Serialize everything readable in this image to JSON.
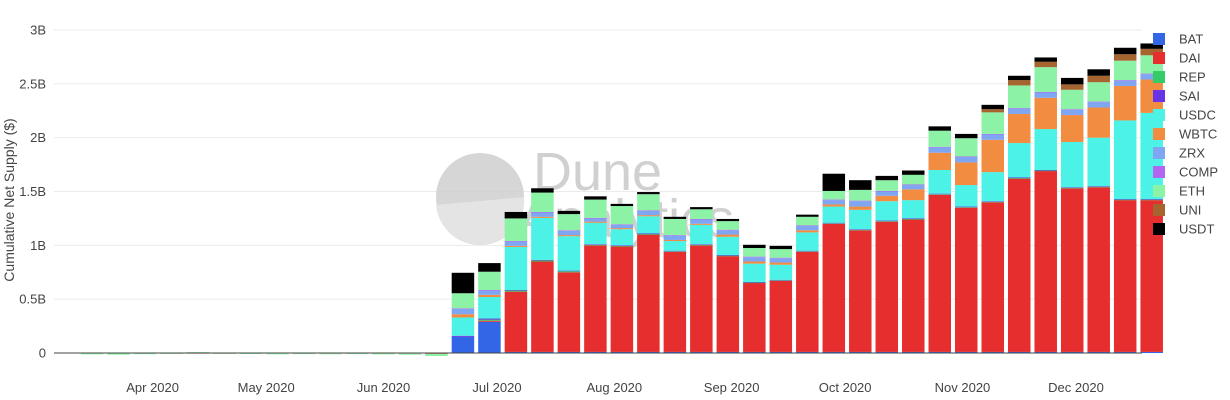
{
  "chart_data": {
    "type": "bar",
    "stacked": true,
    "title": "",
    "ylabel": "Cumulative Net Supply ($)",
    "xlabel": "",
    "ylim": [
      0,
      3000000000
    ],
    "yticks": [
      {
        "value": 0,
        "label": "0"
      },
      {
        "value": 500000000,
        "label": "0.5B"
      },
      {
        "value": 1000000000,
        "label": "1B"
      },
      {
        "value": 1500000000,
        "label": "1.5B"
      },
      {
        "value": 2000000000,
        "label": "2B"
      },
      {
        "value": 2500000000,
        "label": "2.5B"
      },
      {
        "value": 3000000000,
        "label": "3B"
      }
    ],
    "xticks": [
      {
        "date": "2020-04-01",
        "label": "Apr 2020"
      },
      {
        "date": "2020-05-01",
        "label": "May 2020"
      },
      {
        "date": "2020-06-01",
        "label": "Jun 2020"
      },
      {
        "date": "2020-07-01",
        "label": "Jul 2020"
      },
      {
        "date": "2020-08-01",
        "label": "Aug 2020"
      },
      {
        "date": "2020-09-01",
        "label": "Sep 2020"
      },
      {
        "date": "2020-10-01",
        "label": "Oct 2020"
      },
      {
        "date": "2020-11-01",
        "label": "Nov 2020"
      },
      {
        "date": "2020-12-01",
        "label": "Dec 2020"
      }
    ],
    "legend_position": "right",
    "grid": true,
    "x": [
      "2020-03-16",
      "2020-03-23",
      "2020-03-30",
      "2020-04-06",
      "2020-04-13",
      "2020-04-20",
      "2020-04-27",
      "2020-05-04",
      "2020-05-11",
      "2020-05-18",
      "2020-05-25",
      "2020-06-01",
      "2020-06-08",
      "2020-06-15",
      "2020-06-22",
      "2020-06-29",
      "2020-07-06",
      "2020-07-13",
      "2020-07-20",
      "2020-07-27",
      "2020-08-03",
      "2020-08-10",
      "2020-08-17",
      "2020-08-24",
      "2020-08-31",
      "2020-09-07",
      "2020-09-14",
      "2020-09-21",
      "2020-09-28",
      "2020-10-05",
      "2020-10-12",
      "2020-10-19",
      "2020-10-26",
      "2020-11-02",
      "2020-11-09",
      "2020-11-16",
      "2020-11-23",
      "2020-11-30",
      "2020-12-07",
      "2020-12-14",
      "2020-12-21"
    ],
    "series": [
      {
        "name": "BAT",
        "color": "#3366e6",
        "values": [
          0,
          0,
          0,
          0,
          0,
          0,
          0,
          0,
          0,
          0,
          0,
          0,
          0,
          0,
          150000000,
          290000000,
          10000000,
          10000000,
          10000000,
          10000000,
          10000000,
          10000000,
          10000000,
          10000000,
          10000000,
          10000000,
          10000000,
          10000000,
          10000000,
          10000000,
          10000000,
          10000000,
          10000000,
          10000000,
          10000000,
          10000000,
          10000000,
          10000000,
          10000000,
          10000000,
          10000000
        ]
      },
      {
        "name": "DAI",
        "color": "#e62e2e",
        "values": [
          -2000000,
          -4000000,
          -3000000,
          -2000000,
          -1000000,
          -2000000,
          -3000000,
          -4000000,
          -5000000,
          -6000000,
          -4000000,
          -5000000,
          -6000000,
          -8000000,
          0,
          10000000,
          560000000,
          840000000,
          740000000,
          990000000,
          980000000,
          1090000000,
          930000000,
          990000000,
          890000000,
          640000000,
          660000000,
          930000000,
          1190000000,
          1130000000,
          1210000000,
          1230000000,
          1460000000,
          1340000000,
          1390000000,
          1610000000,
          1680000000,
          1520000000,
          1530000000,
          1410000000,
          1410000000
        ]
      },
      {
        "name": "REP",
        "color": "#33cc66",
        "values": [
          0,
          0,
          0,
          0,
          0,
          0,
          0,
          0,
          0,
          0,
          0,
          0,
          0,
          0,
          0,
          10000000,
          10000000,
          10000000,
          10000000,
          5000000,
          5000000,
          5000000,
          5000000,
          5000000,
          5000000,
          5000000,
          5000000,
          5000000,
          5000000,
          5000000,
          5000000,
          5000000,
          5000000,
          5000000,
          5000000,
          5000000,
          5000000,
          5000000,
          5000000,
          5000000,
          5000000
        ]
      },
      {
        "name": "SAI",
        "color": "#6633e6",
        "values": [
          0,
          0,
          0,
          0,
          0,
          0,
          0,
          0,
          0,
          0,
          0,
          0,
          0,
          0,
          10000000,
          10000000,
          5000000,
          5000000,
          5000000,
          5000000,
          5000000,
          5000000,
          5000000,
          5000000,
          5000000,
          5000000,
          5000000,
          5000000,
          5000000,
          5000000,
          5000000,
          5000000,
          5000000,
          5000000,
          5000000,
          5000000,
          5000000,
          5000000,
          5000000,
          5000000,
          5000000
        ]
      },
      {
        "name": "USDC",
        "color": "#4df2e6",
        "values": [
          0,
          0,
          0,
          0,
          0,
          0,
          0,
          0,
          0,
          0,
          0,
          0,
          0,
          0,
          170000000,
          200000000,
          400000000,
          390000000,
          320000000,
          200000000,
          150000000,
          160000000,
          90000000,
          180000000,
          170000000,
          170000000,
          140000000,
          170000000,
          150000000,
          180000000,
          180000000,
          170000000,
          220000000,
          200000000,
          270000000,
          320000000,
          380000000,
          420000000,
          450000000,
          730000000,
          800000000
        ]
      },
      {
        "name": "WBTC",
        "color": "#f28c40",
        "values": [
          0,
          0,
          0,
          0,
          0,
          0,
          0,
          0,
          0,
          0,
          0,
          0,
          0,
          0,
          30000000,
          20000000,
          10000000,
          10000000,
          10000000,
          10000000,
          10000000,
          10000000,
          10000000,
          10000000,
          20000000,
          20000000,
          20000000,
          20000000,
          20000000,
          30000000,
          50000000,
          100000000,
          160000000,
          210000000,
          300000000,
          270000000,
          290000000,
          250000000,
          280000000,
          320000000,
          310000000
        ]
      },
      {
        "name": "ZRX",
        "color": "#7fa6f2",
        "values": [
          0,
          0,
          0,
          0,
          0,
          0,
          0,
          0,
          0,
          0,
          0,
          0,
          0,
          0,
          50000000,
          40000000,
          40000000,
          40000000,
          40000000,
          30000000,
          30000000,
          40000000,
          40000000,
          40000000,
          40000000,
          40000000,
          40000000,
          40000000,
          40000000,
          50000000,
          40000000,
          40000000,
          50000000,
          50000000,
          50000000,
          50000000,
          50000000,
          50000000,
          50000000,
          50000000,
          50000000
        ]
      },
      {
        "name": "COMP",
        "color": "#b366f2",
        "values": [
          0,
          0,
          0,
          0,
          0,
          0,
          0,
          0,
          0,
          0,
          0,
          0,
          0,
          0,
          5000000,
          5000000,
          5000000,
          5000000,
          5000000,
          5000000,
          5000000,
          5000000,
          5000000,
          5000000,
          5000000,
          5000000,
          5000000,
          5000000,
          5000000,
          5000000,
          5000000,
          5000000,
          5000000,
          5000000,
          5000000,
          5000000,
          5000000,
          5000000,
          5000000,
          5000000,
          5000000
        ]
      },
      {
        "name": "ETH",
        "color": "#8cf2a6",
        "values": [
          -10000000,
          -12000000,
          -8000000,
          -6000000,
          8000000,
          -5000000,
          -6000000,
          -8000000,
          -4000000,
          -5000000,
          -6000000,
          -8000000,
          -10000000,
          -20000000,
          140000000,
          170000000,
          210000000,
          180000000,
          150000000,
          170000000,
          170000000,
          150000000,
          150000000,
          90000000,
          80000000,
          80000000,
          80000000,
          80000000,
          80000000,
          100000000,
          100000000,
          90000000,
          150000000,
          170000000,
          200000000,
          210000000,
          230000000,
          180000000,
          180000000,
          180000000,
          170000000
        ]
      },
      {
        "name": "UNI",
        "color": "#a6642e",
        "values": [
          0,
          0,
          0,
          0,
          0,
          0,
          0,
          0,
          0,
          0,
          0,
          0,
          0,
          0,
          0,
          0,
          0,
          0,
          0,
          0,
          0,
          0,
          0,
          0,
          0,
          0,
          0,
          0,
          0,
          0,
          0,
          0,
          0,
          0,
          30000000,
          50000000,
          50000000,
          50000000,
          60000000,
          60000000,
          60000000
        ]
      },
      {
        "name": "USDT",
        "color": "#000000",
        "values": [
          0,
          0,
          0,
          0,
          0,
          0,
          0,
          0,
          0,
          0,
          0,
          0,
          0,
          0,
          190000000,
          80000000,
          60000000,
          40000000,
          30000000,
          30000000,
          20000000,
          20000000,
          20000000,
          20000000,
          20000000,
          30000000,
          30000000,
          20000000,
          160000000,
          90000000,
          40000000,
          40000000,
          40000000,
          40000000,
          40000000,
          40000000,
          40000000,
          60000000,
          60000000,
          60000000,
          50000000
        ]
      }
    ]
  },
  "watermark": {
    "line1": "Dune",
    "line2": "Analytics"
  },
  "colors": {
    "grid": "#ebebeb",
    "zero_line": "#444444",
    "watermark": "#c8c8c8"
  }
}
